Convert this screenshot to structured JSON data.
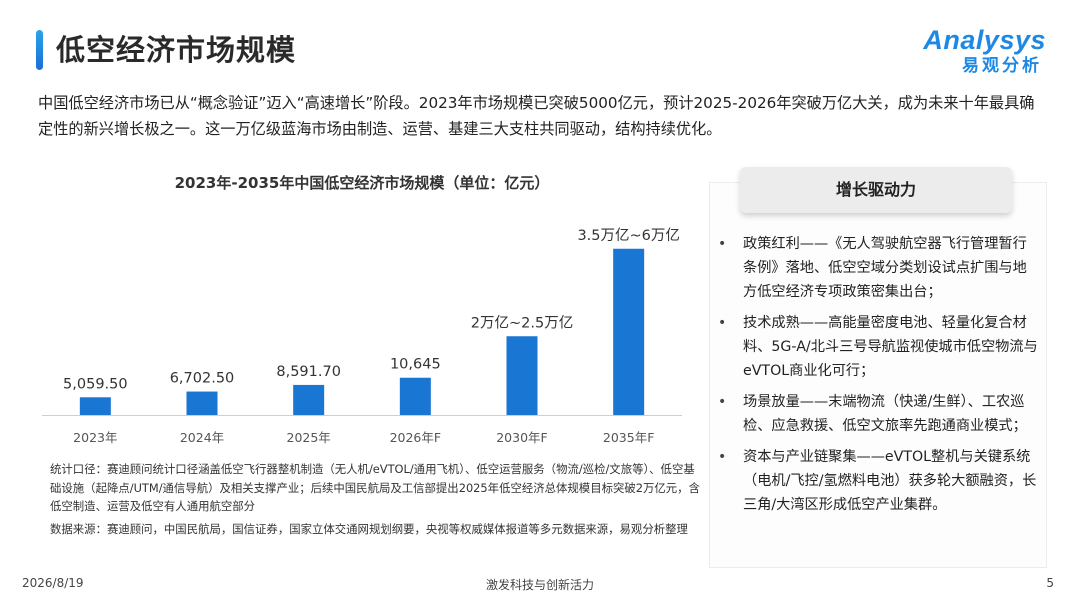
{
  "header": {
    "title": "低空经济市场规模",
    "logo_en": "Analysys",
    "logo_cn": "易观分析"
  },
  "intro": "中国低空经济市场已从“概念验证”迈入“高速增长”阶段。2023年市场规模已突破5000亿元，预计2025-2026年突破万亿大关，成为未来十年最具确定性的新兴增长极之一。这一万亿级蓝海市场由制造、运营、基建三大支柱共同驱动，结构持续优化。",
  "chart_data": {
    "type": "bar",
    "title": "2023年-2035年中国低空经济市场规模（单位：亿元）",
    "categories": [
      "2023年",
      "2024年",
      "2025年",
      "2026年F",
      "2030年F",
      "2035年F"
    ],
    "values": [
      5059.5,
      6702.5,
      8591.7,
      10645,
      22500,
      47500
    ],
    "data_labels": [
      "5,059.50",
      "6,702.50",
      "8,591.70",
      "10,645",
      "2万亿~2.5万亿",
      "3.5万亿~6万亿"
    ],
    "bar_color": "#1976d2",
    "xlabel": "",
    "ylabel": "",
    "ylim": [
      0,
      50000
    ],
    "grid": false,
    "legend": "none"
  },
  "notes": {
    "methodology": "统计口径：赛迪顾问统计口径涵盖低空飞行器整机制造（无人机/eVTOL/通用飞机）、低空运营服务（物流/巡检/文旅等）、低空基础设施（起降点/UTM/通信导航）及相关支撑产业；后续中国民航局及工信部提出2025年低空经济总体规模目标突破2万亿元，含低空制造、运营及低空有人通用航空部分",
    "source": "数据来源：赛迪顾问，中国民航局，国信证券，国家立体交通网规划纲要，央视等权威媒体报道等多元数据来源，易观分析整理"
  },
  "drivers": {
    "title": "增长驱动力",
    "bullet": "•",
    "items": [
      "政策红利——《无人驾驶航空器飞行管理暂行条例》落地、低空空域分类划设试点扩围与地方低空经济专项政策密集出台；",
      "技术成熟——高能量密度电池、轻量化复合材料、5G-A/北斗三号导航监视使城市低空物流与eVTOL商业化可行；",
      "场景放量——末端物流（快递/生鲜）、工农巡检、应急救援、低空文旅率先跑通商业模式；",
      "资本与产业链聚集——eVTOL整机与关键系统（电机/飞控/氢燃料电池）获多轮大额融资，长三角/大湾区形成低空产业集群。"
    ]
  },
  "footer": {
    "date": "2026/8/19",
    "center": "激发科技与创新活力",
    "page": "5"
  }
}
